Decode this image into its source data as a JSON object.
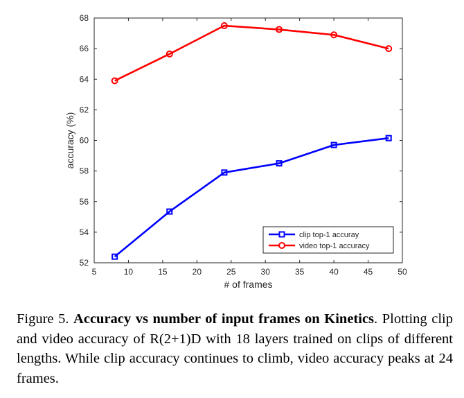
{
  "chart_data": {
    "type": "line",
    "title": "",
    "xlabel": "# of frames",
    "ylabel": "accuracy (%)",
    "xlim": [
      5,
      50
    ],
    "ylim": [
      52,
      68
    ],
    "xticks": [
      5,
      10,
      15,
      20,
      25,
      30,
      35,
      40,
      45,
      50
    ],
    "yticks": [
      52,
      54,
      56,
      58,
      60,
      62,
      64,
      66,
      68
    ],
    "grid": false,
    "legend_position": "bottom-right",
    "x": [
      8,
      16,
      24,
      32,
      40,
      48
    ],
    "series": [
      {
        "name": "clip top-1 accuray",
        "color": "#0000ff",
        "marker": "square",
        "values": [
          52.4,
          55.35,
          57.9,
          58.5,
          59.7,
          60.15
        ]
      },
      {
        "name": "video top-1 accuracy",
        "color": "#ff0000",
        "marker": "circle",
        "values": [
          63.9,
          65.65,
          67.5,
          67.25,
          66.9,
          66.0
        ]
      }
    ]
  },
  "caption": {
    "prefix": "Figure 5. ",
    "title": "Accuracy vs number of input frames on Kinetics",
    "body": ". Plotting clip and video accuracy of R(2+1)D with 18 layers trained on clips of different lengths.  While clip accuracy continues to climb, video accuracy peaks at 24 frames."
  }
}
